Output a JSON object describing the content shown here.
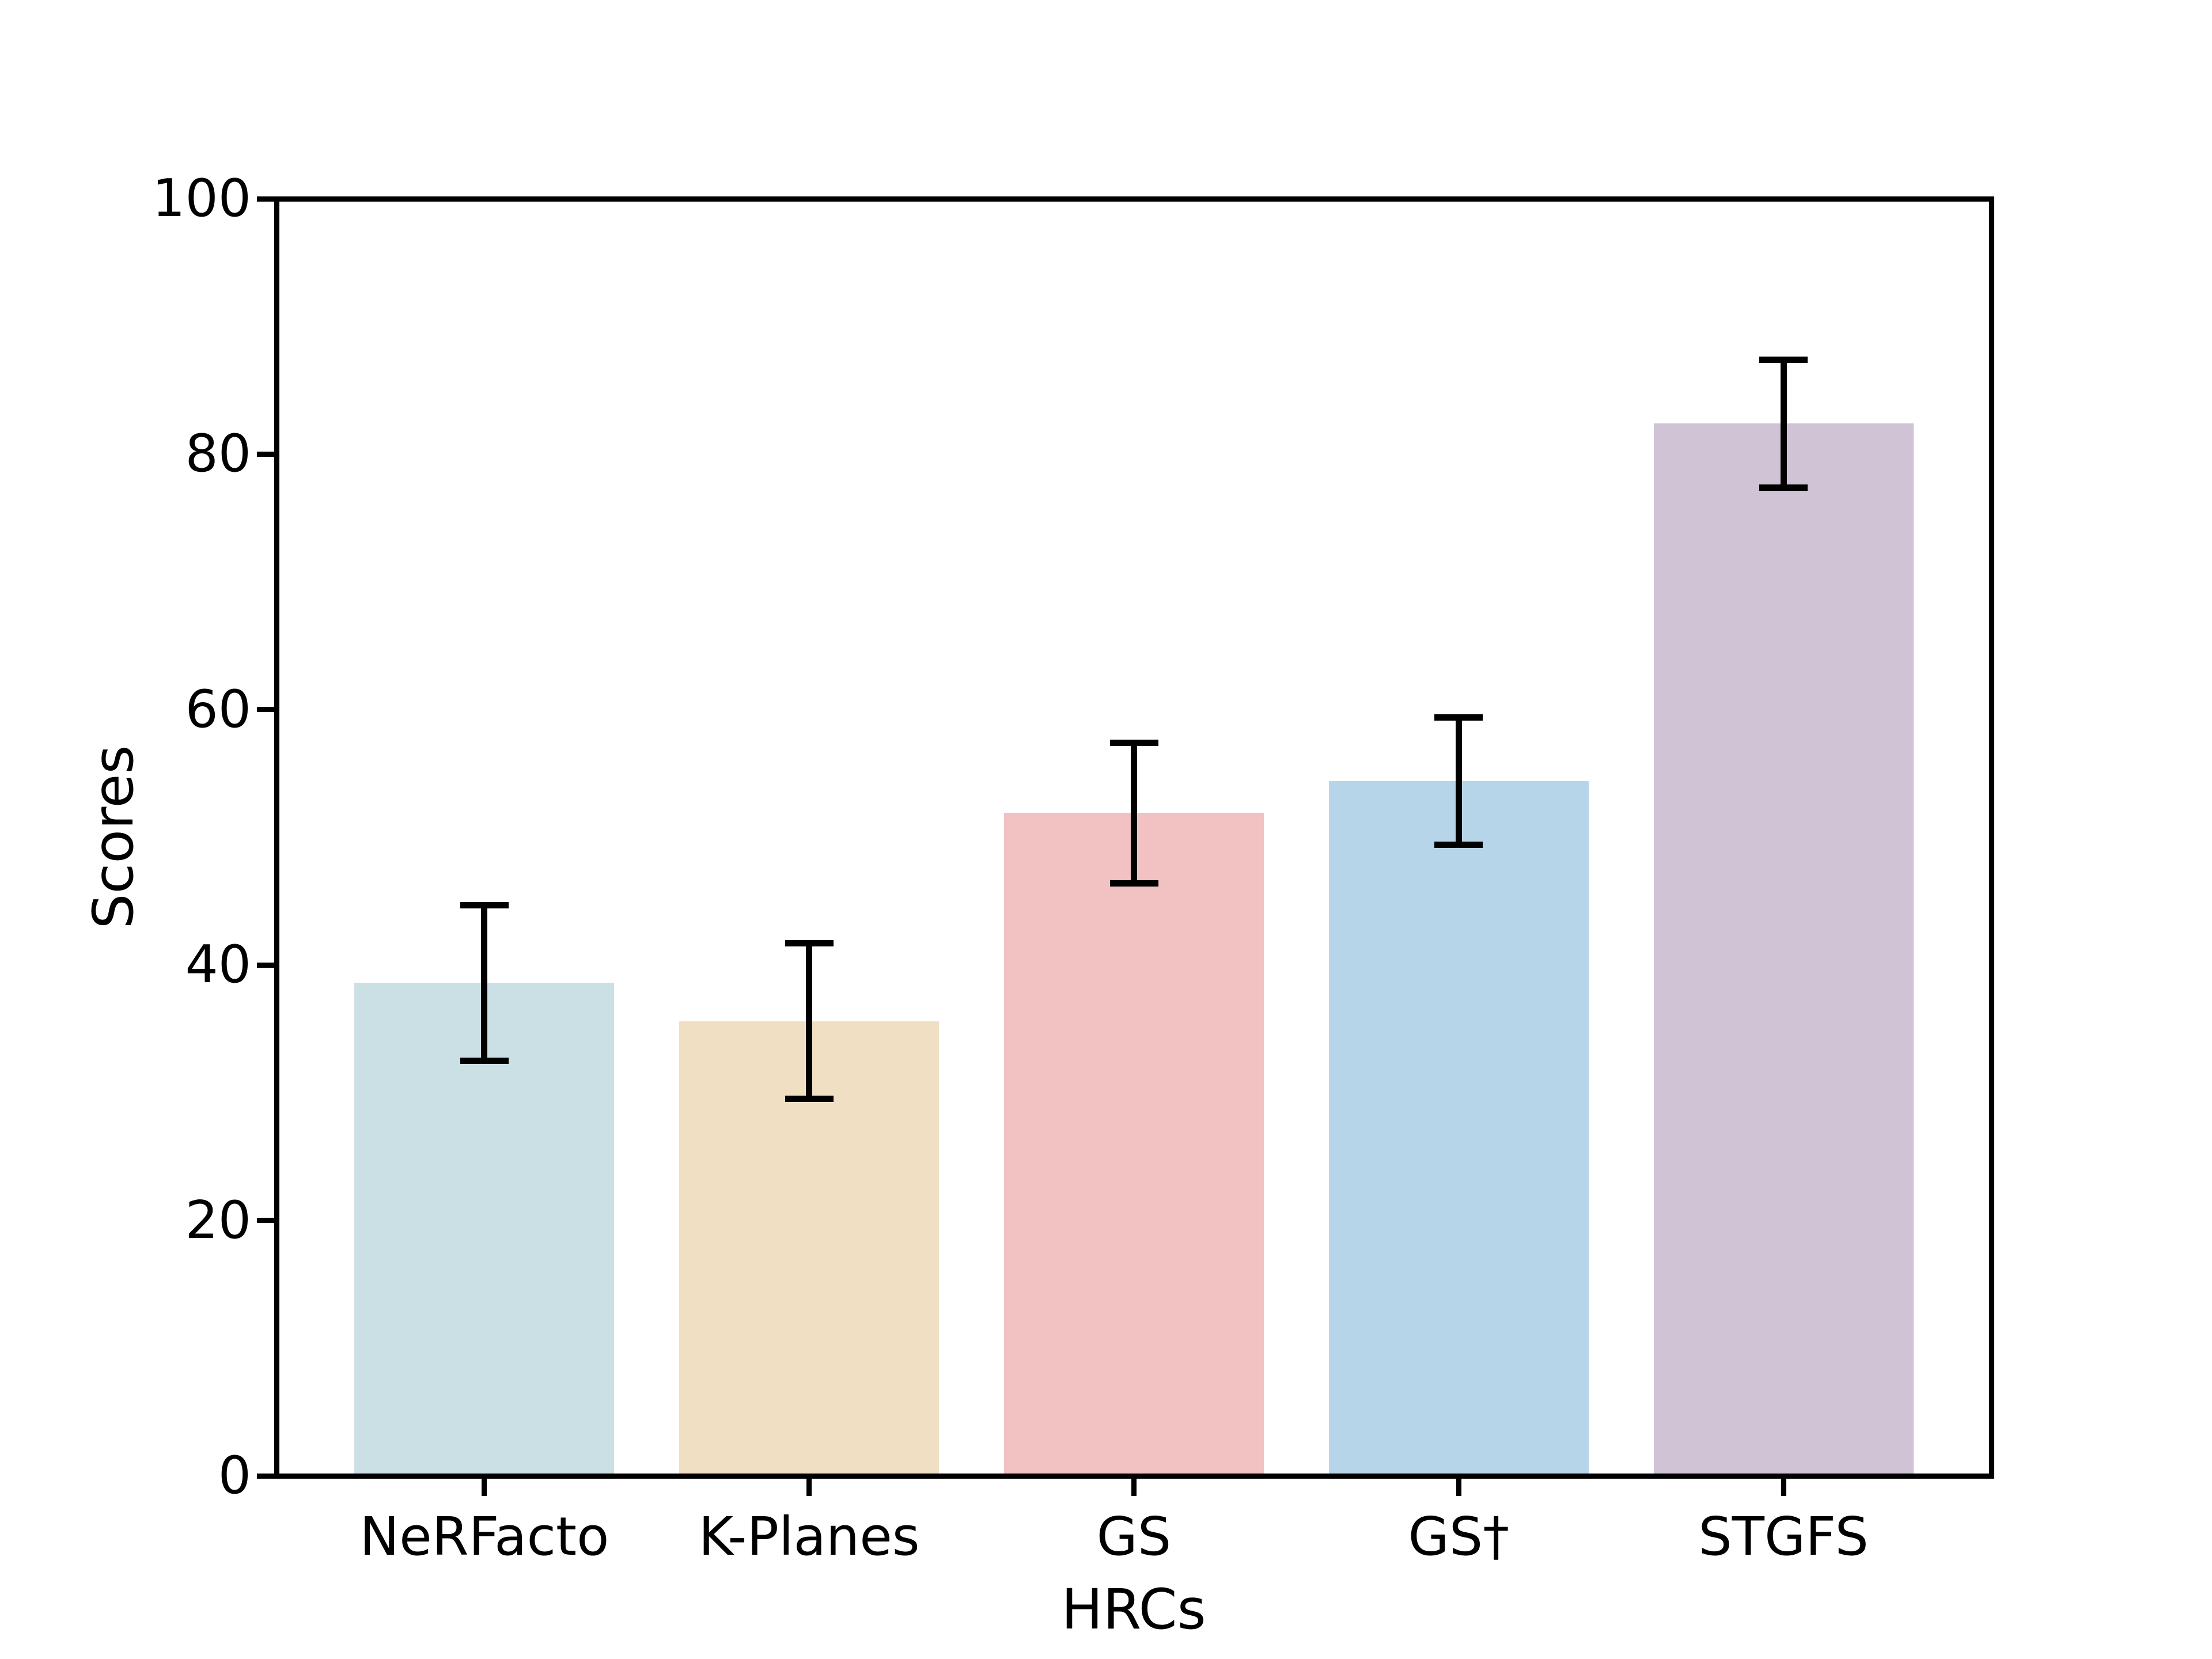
{
  "chart_data": {
    "type": "bar",
    "title": "",
    "xlabel": "HRCs",
    "ylabel": "Scores",
    "categories": [
      "NeRFacto",
      "K-Planes",
      "GS",
      "GS†",
      "STGFS"
    ],
    "values": [
      38.6,
      35.6,
      51.9,
      54.4,
      82.4
    ],
    "error_bars": [
      6.1,
      6.1,
      5.5,
      5.0,
      5.0
    ],
    "bar_colors": [
      "#cbe0e5",
      "#f0dfc3",
      "#f2c1c1",
      "#b7d5e9",
      "#d1c3d6"
    ],
    "error_color": "#000000",
    "axis_color": "#000000",
    "background_color": "#ffffff",
    "ylim": [
      0,
      100
    ],
    "yticks": [
      0,
      20,
      40,
      60,
      80,
      100
    ],
    "ytick_labels": [
      "0",
      "20",
      "40",
      "60",
      "80",
      "100"
    ],
    "grid": false,
    "legend": null,
    "bar_width_fraction": 0.8,
    "error_cap_halfwidth_units": 5
  }
}
